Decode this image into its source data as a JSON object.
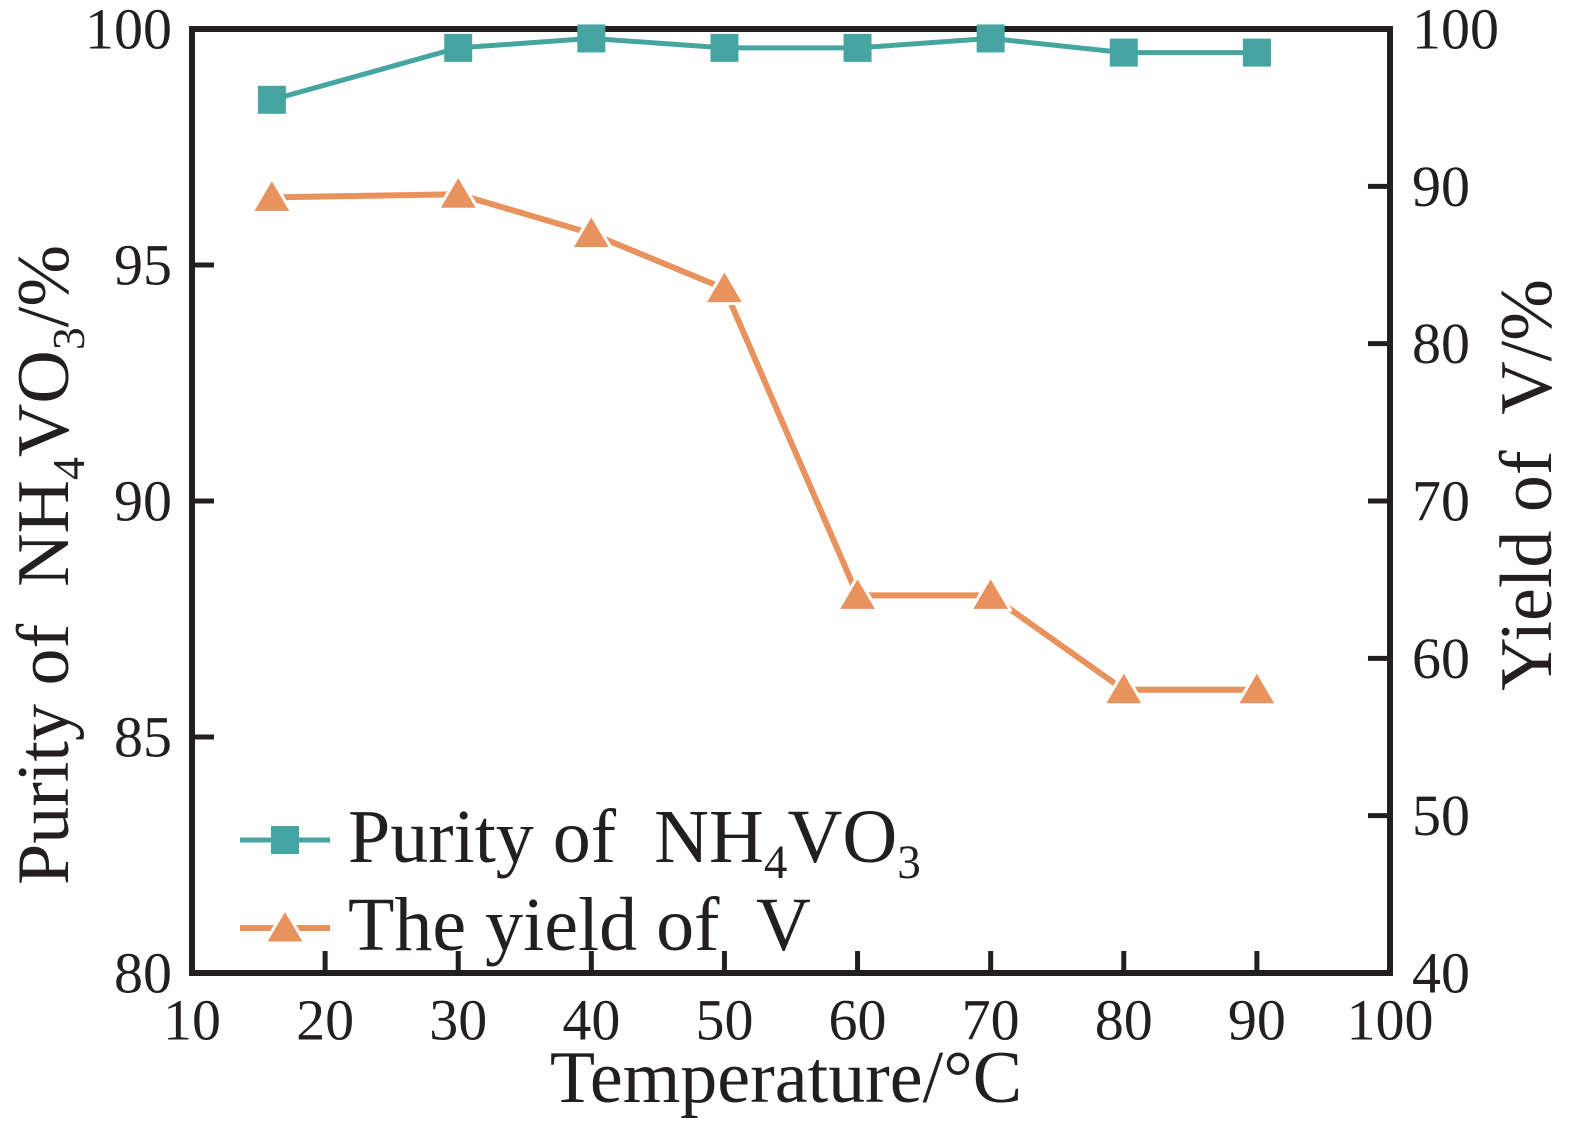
{
  "chart_data": {
    "type": "line",
    "title": "",
    "grid": false,
    "legend_position": "lower-left",
    "x": [
      16,
      30,
      40,
      50,
      60,
      70,
      80,
      90
    ],
    "series": [
      {
        "name": "Purity of NH4VO3",
        "axis": "left",
        "marker": "square",
        "color": "#46A5A0",
        "line_width": 5,
        "values": [
          98.5,
          99.6,
          99.8,
          99.6,
          99.6,
          99.8,
          99.5,
          99.5
        ]
      },
      {
        "name": "The yield of V",
        "axis": "right",
        "marker": "triangle",
        "color": "#E8925E",
        "line_width": 6,
        "values": [
          89.3,
          89.5,
          87.0,
          83.5,
          64.0,
          64.0,
          58.0,
          58.0
        ]
      }
    ],
    "x_axis": {
      "label": "Temperature/°C",
      "min": 10,
      "max": 100,
      "tick_labels": [
        10,
        20,
        30,
        40,
        50,
        60,
        70,
        80,
        90,
        100
      ],
      "tick_marks": [
        20,
        30,
        40,
        50,
        60,
        70,
        80,
        90
      ]
    },
    "left_axis": {
      "label_text": "Purity of NH4VO3/%",
      "label_parts": [
        {
          "t": "Purity of  NH"
        },
        {
          "sub": "4"
        },
        {
          "t": "VO"
        },
        {
          "sub": "3"
        },
        {
          "t": "/%"
        }
      ],
      "min": 80,
      "max": 100,
      "tick_labels": [
        80,
        85,
        90,
        95,
        100
      ],
      "tick_marks": [
        85,
        90,
        95
      ]
    },
    "right_axis": {
      "label_text": "Yield of V/%",
      "label_parts": [
        {
          "t": "Yield of  V/%"
        }
      ],
      "min": 40,
      "max": 100,
      "tick_labels": [
        40,
        50,
        60,
        70,
        80,
        90,
        100
      ],
      "tick_marks": [
        50,
        60,
        70,
        80,
        90
      ]
    },
    "legend": {
      "entries": [
        {
          "series": 0,
          "label_parts": [
            {
              "t": "Purity of  NH"
            },
            {
              "sub": "4"
            },
            {
              "t": "VO"
            },
            {
              "sub": "3"
            }
          ]
        },
        {
          "series": 1,
          "label_parts": [
            {
              "t": "The yield of  V"
            }
          ]
        }
      ]
    },
    "ink_color": "#231f20"
  }
}
